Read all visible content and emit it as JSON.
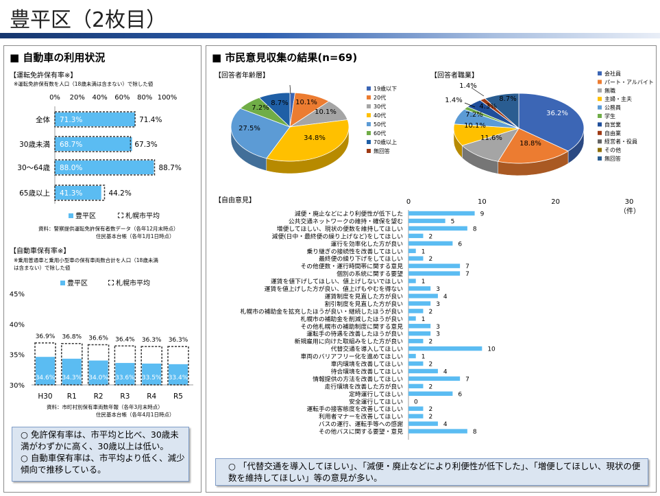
{
  "page_title": "豊平区（2枚目）",
  "left": {
    "heading": "■ 自動車の利用状況",
    "license": {
      "section_label": "【運転免許保有率※】",
      "note": "※運転免許保有数を人口（18歳未満は含まない）で除した値",
      "legend_district": "豊平区",
      "legend_city": "札幌市平均",
      "source1": "資料：警察提供運転免許保有者数データ（各年12月末時点）",
      "source2": "住民基本台帳（各年1月1日時点）"
    },
    "car": {
      "section_label": "【自動車保有率※】",
      "note1": "※乗用普通車と乗用小型車の保有車両数合計を人口（18歳未満",
      "note2": "は含まない）で除した値",
      "legend_district": "豊平区",
      "legend_city": "札幌市平均",
      "source1": "資料：市町村別保有車両数年報（各年3月末時点）",
      "source2": "住民基本台帳（各年4月1日時点）"
    },
    "summary": [
      "○ 免許保有率は、市平均と比べ、30歳未満がわずかに高く、30歳以上は低い。",
      "○ 自動車保有率は、市平均より低く、減少傾向で推移している。"
    ]
  },
  "right": {
    "heading": "■ 市民意見収集の結果(n=69)",
    "age_label": "【回答者年齢層】",
    "job_label": "【回答者職業】",
    "free_label": "【自由意見】",
    "free_unit": "（件）",
    "summary": "○ 「代替交通を導入してほしい」、「減便・廃止などにより利便性が低下した」、「増便してほしい、現状の便数を維持してほしい」等の意見が多い。"
  },
  "chart_data": [
    {
      "type": "bar",
      "orientation": "horizontal",
      "categories": [
        "全体",
        "30歳未満",
        "30～64歳",
        "65歳以上"
      ],
      "series": [
        {
          "name": "豊平区",
          "values": [
            71.3,
            68.7,
            88.0,
            41.3
          ]
        },
        {
          "name": "札幌市平均",
          "values": [
            71.4,
            67.3,
            88.7,
            44.2
          ]
        }
      ],
      "xlim": [
        0,
        100
      ],
      "xticks": [
        "0%",
        "20%",
        "40%",
        "60%",
        "80%",
        "100%"
      ],
      "legend": "bottom",
      "colors": {
        "district": "#5bbcf2",
        "city_border": "#333333"
      }
    },
    {
      "type": "bar",
      "categories": [
        "H30",
        "R1",
        "R2",
        "R3",
        "R4",
        "R5"
      ],
      "series": [
        {
          "name": "豊平区",
          "values": [
            34.6,
            34.3,
            34.0,
            33.6,
            33.5,
            33.4
          ]
        },
        {
          "name": "札幌市平均",
          "values": [
            36.9,
            36.8,
            36.6,
            36.4,
            36.3,
            36.3
          ]
        }
      ],
      "ylim": [
        30,
        45
      ],
      "yticks": [
        "30%",
        "35%",
        "40%",
        "45%"
      ],
      "legend": "top",
      "colors": {
        "district": "#5bbcf2",
        "city_border": "#333333"
      }
    },
    {
      "type": "pie",
      "categories": [
        "19歳以下",
        "20代",
        "30代",
        "40代",
        "50代",
        "60代",
        "70歳以上",
        "無回答"
      ],
      "values": [
        1.4,
        10.1,
        10.1,
        34.8,
        27.5,
        7.2,
        8.7,
        0.0
      ],
      "labels": [
        "1.4%",
        "10.1%",
        "10.1%",
        "34.8%",
        "27.5%",
        "7.2%",
        "8.7%",
        ""
      ],
      "colors": [
        "#3c66b5",
        "#ec7c31",
        "#a5a5a5",
        "#ffc000",
        "#5c9bd5",
        "#70ad47",
        "#1f5fa6",
        "#9e3a14"
      ],
      "legend": "right"
    },
    {
      "type": "pie",
      "categories": [
        "会社員",
        "パート・アルバイト",
        "無職",
        "主婦・主夫",
        "公務員",
        "学生",
        "自営業",
        "自由業",
        "経営者・役員",
        "その他",
        "無回答"
      ],
      "values": [
        36.2,
        18.8,
        11.6,
        10.1,
        7.2,
        1.4,
        4.3,
        1.4,
        0.0,
        0.0,
        8.7
      ],
      "labels": [
        "36.2%",
        "18.8%",
        "11.6%",
        "10.1%",
        "7.2%",
        "1.4%",
        "4.3%",
        "1.4%",
        "",
        "",
        "8.7%"
      ],
      "colors": [
        "#3c66b5",
        "#ec7c31",
        "#a5a5a5",
        "#ffc000",
        "#5c9bd5",
        "#70ad47",
        "#1f4e9a",
        "#9e3a14",
        "#636363",
        "#8c6d00",
        "#2a5d91"
      ],
      "legend": "right"
    },
    {
      "type": "bar",
      "orientation": "horizontal",
      "categories": [
        "減便・廃止などにより利便性が低下した",
        "公共交通ネットワークの維持・確保を望む",
        "増便してほしい、現状の便数を維持してほしい",
        "減便(日中・最終便の繰り上げなど)をしてほしい",
        "運行を効率化した方が良い",
        "乗り継ぎの接続性を改善してほしい",
        "最終便の繰り下げをしてほしい",
        "その他便数・運行時間帯に関する意見",
        "個別の系統に関する要望",
        "運賃を値下げしてほしい、値上げしないでほしい",
        "運賃を値上げした方が良い、値上げもやむを得ない",
        "運賃制度を見直した方が良い",
        "割引制度を見直した方が良い",
        "札幌市の補助金を拡充したほうが良い・継続したほうが良い",
        "札幌市の補助金を削減したほうが良い",
        "その他札幌市の補助制度に関する意見",
        "運転手の待遇を改善したほうが良い",
        "新規雇用に向けた取組みをした方が良い",
        "代替交通を導入してほしい",
        "車両のバリアフリー化を進めてほしい",
        "車内環境を改善してほしい",
        "待合環境を改善してほしい",
        "情報提供の方法を改善してほしい",
        "走行環境を改善した方が良い",
        "定時運行してほしい",
        "安全運行してほしい",
        "運転手の接客態度を改善してほしい",
        "利用者マナーを改善してほしい",
        "バスの運行、運転手等への感謝",
        "その他バスに関する要望・意見"
      ],
      "values": [
        9,
        5,
        8,
        2,
        6,
        1,
        2,
        7,
        7,
        1,
        3,
        4,
        3,
        2,
        1,
        3,
        3,
        2,
        10,
        1,
        2,
        4,
        7,
        2,
        6,
        0,
        2,
        2,
        4,
        8
      ],
      "xlim": [
        0,
        30
      ],
      "xticks": [
        "0",
        "10",
        "20",
        "30"
      ],
      "color": "#5bbcf2"
    }
  ]
}
